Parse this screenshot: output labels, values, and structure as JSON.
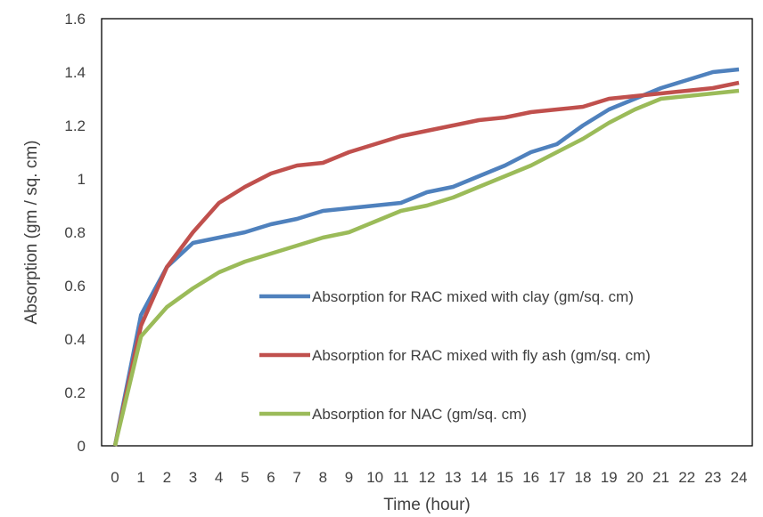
{
  "chart_data": {
    "type": "line",
    "title": "",
    "xlabel": "Time (hour)",
    "ylabel": "Absorption (gm / sq. cm)",
    "xlim": [
      0,
      24
    ],
    "ylim": [
      0,
      1.6
    ],
    "x_ticks": [
      "0",
      "1",
      "2",
      "3",
      "4",
      "5",
      "6",
      "7",
      "8",
      "9",
      "10",
      "11",
      "12",
      "13",
      "14",
      "15",
      "16",
      "17",
      "18",
      "19",
      "20",
      "21",
      "22",
      "23",
      "24"
    ],
    "y_ticks": [
      "0",
      "0.2",
      "0.4",
      "0.6",
      "0.8",
      "1",
      "1.2",
      "1.4",
      "1.6"
    ],
    "grid": false,
    "legend_position": "inside-right",
    "x": [
      0,
      1,
      2,
      3,
      4,
      5,
      6,
      7,
      8,
      9,
      10,
      11,
      12,
      13,
      14,
      15,
      16,
      17,
      18,
      19,
      20,
      21,
      22,
      23,
      24
    ],
    "series": [
      {
        "name": "Absorption for RAC mixed with clay  (gm/sq. cm)",
        "color": "#4F81BD",
        "values": [
          0,
          0.49,
          0.67,
          0.76,
          0.78,
          0.8,
          0.83,
          0.85,
          0.88,
          0.89,
          0.9,
          0.91,
          0.95,
          0.97,
          1.01,
          1.05,
          1.1,
          1.13,
          1.2,
          1.26,
          1.3,
          1.34,
          1.37,
          1.4,
          1.41
        ]
      },
      {
        "name": "Absorption for RAC mixed with fly ash (gm/sq. cm)",
        "color": "#C0504D",
        "values": [
          0,
          0.45,
          0.67,
          0.8,
          0.91,
          0.97,
          1.02,
          1.05,
          1.06,
          1.1,
          1.13,
          1.16,
          1.18,
          1.2,
          1.22,
          1.23,
          1.25,
          1.26,
          1.27,
          1.3,
          1.31,
          1.32,
          1.33,
          1.34,
          1.36
        ]
      },
      {
        "name": "Absorption for NAC (gm/sq. cm)",
        "color": "#9BBB59",
        "values": [
          0,
          0.41,
          0.52,
          0.59,
          0.65,
          0.69,
          0.72,
          0.75,
          0.78,
          0.8,
          0.84,
          0.88,
          0.9,
          0.93,
          0.97,
          1.01,
          1.05,
          1.1,
          1.15,
          1.21,
          1.26,
          1.3,
          1.31,
          1.32,
          1.33
        ]
      }
    ]
  }
}
